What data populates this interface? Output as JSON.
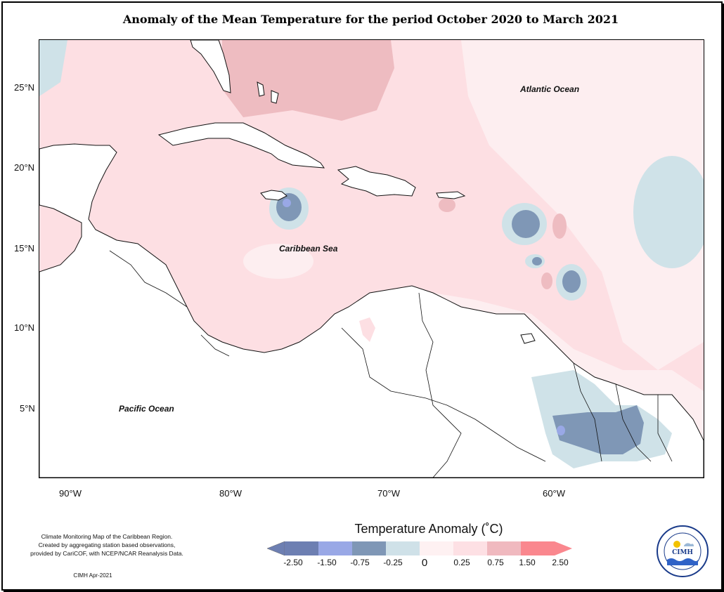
{
  "title": "Anomaly of the Mean Temperature for the period October 2020 to March 2021",
  "axes": {
    "latitude_labels": [
      "25°N",
      "20°N",
      "15°N",
      "10°N",
      "5°N"
    ],
    "longitude_labels": [
      "90°W",
      "80°W",
      "70°W",
      "60°W"
    ]
  },
  "map_labels": {
    "atlantic": "Atlantic Ocean",
    "caribbean": "Caribbean Sea",
    "pacific": "Pacific Ocean"
  },
  "legend": {
    "title": "Temperature Anomaly (˚C)",
    "ticks": [
      "-2.50",
      "-1.50",
      "-0.75",
      "-0.25",
      "0",
      "0.25",
      "0.75",
      "1.50",
      "2.50"
    ],
    "colors": [
      "#6d7fb2",
      "#99a8e6",
      "#7f97b6",
      "#cfe1e8",
      "#fef1f2",
      "#fde0e4",
      "#f0b9bf",
      "#fa878e"
    ]
  },
  "credits": {
    "line1": "Climate Monitoring Map of the Caribbean Region.",
    "line2": "Created by aggregating station based observations,",
    "line3": "provided by CariCOF, with NCEP/NCAR Reanalysis Data.",
    "footer": "CIMH Apr-2021"
  },
  "logo": {
    "name": "CIMH",
    "ring_text": "Caribbean Institute for Meteorology and Hydrology"
  }
}
